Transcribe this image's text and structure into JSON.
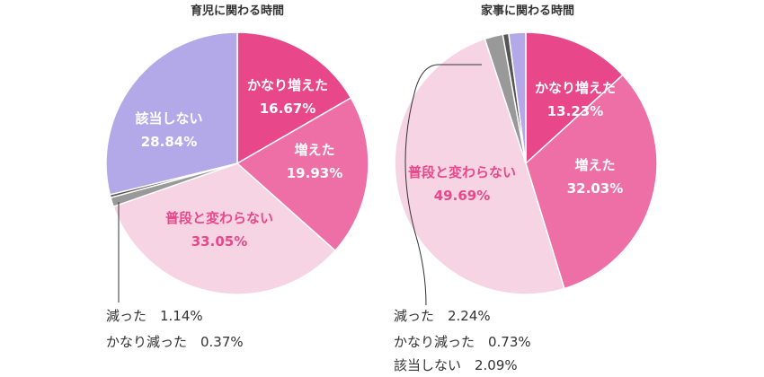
{
  "chart_data": [
    {
      "type": "pie",
      "title": "育児に関わる時間",
      "slices": [
        {
          "label": "かなり増えた",
          "value": 16.67,
          "value_text": "16.67%",
          "color": "#e8488a",
          "label_color": "#ffffff"
        },
        {
          "label": "増えた",
          "value": 19.93,
          "value_text": "19.93%",
          "color": "#ee6fa6",
          "label_color": "#ffffff"
        },
        {
          "label": "普段と変わらない",
          "value": 33.05,
          "value_text": "33.05%",
          "color": "#f7d4e3",
          "label_color": "#e8488a"
        },
        {
          "label": "減った",
          "value": 1.14,
          "value_text": "1.14%",
          "color": "#999999",
          "label_color": "#333333"
        },
        {
          "label": "かなり減った",
          "value": 0.37,
          "value_text": "0.37%",
          "color": "#555555",
          "label_color": "#333333"
        },
        {
          "label": "該当しない",
          "value": 28.84,
          "value_text": "28.84%",
          "color": "#b3a9e8",
          "label_color": "#ffffff"
        }
      ]
    },
    {
      "type": "pie",
      "title": "家事に関わる時間",
      "slices": [
        {
          "label": "かなり増えた",
          "value": 13.23,
          "value_text": "13.23%",
          "color": "#e8488a",
          "label_color": "#ffffff"
        },
        {
          "label": "増えた",
          "value": 32.03,
          "value_text": "32.03%",
          "color": "#ee6fa6",
          "label_color": "#ffffff"
        },
        {
          "label": "普段と変わらない",
          "value": 49.69,
          "value_text": "49.69%",
          "color": "#f7d4e3",
          "label_color": "#e8488a"
        },
        {
          "label": "減った",
          "value": 2.24,
          "value_text": "2.24%",
          "color": "#999999",
          "label_color": "#333333"
        },
        {
          "label": "かなり減った",
          "value": 0.73,
          "value_text": "0.73%",
          "color": "#555555",
          "label_color": "#333333"
        },
        {
          "label": "該当しない",
          "value": 2.09,
          "value_text": "2.09%",
          "color": "#b3a9e8",
          "label_color": "#333333"
        }
      ]
    }
  ]
}
